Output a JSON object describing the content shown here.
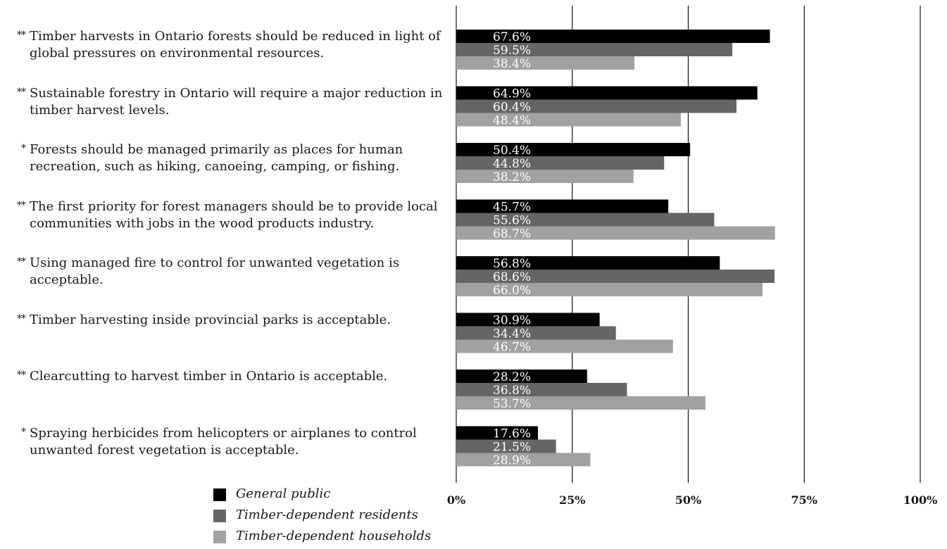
{
  "statements": [
    {
      "stars": "**",
      "text": "Timber harvests in Ontario forests should be reduced in light of global pressures on environmental resources."
    },
    {
      "stars": "**",
      "text": "Sustainable forestry in Ontario will require a major reduction in timber harvest levels."
    },
    {
      "stars": "*",
      "text": "Forests should be managed primarily as places for human recreation, such as hiking, canoeing, camping, or fishing."
    },
    {
      "stars": "**",
      "text": "The first priority for forest managers should be to provide local communities with jobs in the wood products industry."
    },
    {
      "stars": "**",
      "text": "Using managed fire to control for unwanted vegetation is acceptable."
    },
    {
      "stars": "**",
      "text": "Timber harvesting inside provincial parks is acceptable."
    },
    {
      "stars": "**",
      "text": "Clearcutting to harvest timber in Ontario is acceptable."
    },
    {
      "stars": "*",
      "text": "Spraying herbicides from helicopters or airplanes to control unwanted forest vegetation is acceptable."
    }
  ],
  "chart_data": {
    "type": "bar",
    "orientation": "horizontal",
    "categories": [
      "Timber harvests in Ontario forests should be reduced in light of global pressures on environmental resources.",
      "Sustainable forestry in Ontario will require a major reduction in timber harvest levels.",
      "Forests should be managed primarily as places for human recreation, such as hiking, canoeing, camping, or fishing.",
      "The first priority for forest managers should be to provide local communities with jobs in the wood products industry.",
      "Using managed fire to control for unwanted vegetation is acceptable.",
      "Timber harvesting inside provincial parks is acceptable.",
      "Clearcutting to harvest timber in Ontario is acceptable.",
      "Spraying herbicides from helicopters or airplanes to control unwanted forest vegetation is acceptable."
    ],
    "series": [
      {
        "name": "General public",
        "color": "#000000",
        "values": [
          67.6,
          64.9,
          50.4,
          45.7,
          56.8,
          30.9,
          28.2,
          17.6
        ],
        "labels": [
          "67.6%",
          "64.9%",
          "50.4%",
          "45.7%",
          "56.8%",
          "30.9%",
          "28.2%",
          "17.6%"
        ]
      },
      {
        "name": "Timber-dependent residents",
        "color": "#656565",
        "values": [
          59.5,
          60.4,
          44.8,
          55.6,
          68.6,
          34.4,
          36.8,
          21.5
        ],
        "labels": [
          "59.5%",
          "60.4%",
          "44.8%",
          "55.6%",
          "68.6%",
          "34.4%",
          "36.8%",
          "21.5%"
        ]
      },
      {
        "name": "Timber-dependent households",
        "color": "#a1a1a1",
        "values": [
          38.4,
          48.4,
          38.2,
          68.7,
          66.0,
          46.7,
          53.7,
          28.9
        ],
        "labels": [
          "38.4%",
          "48.4%",
          "38.2%",
          "68.7%",
          "66.0%",
          "46.7%",
          "53.7%",
          "28.9%"
        ]
      }
    ],
    "xlim": [
      0,
      100
    ],
    "ticks": [
      0,
      25,
      50,
      75,
      100
    ],
    "tick_labels": [
      "0%",
      "25%",
      "50%",
      "75%",
      "100%"
    ],
    "grid": true,
    "legend_position": "bottom-left"
  }
}
